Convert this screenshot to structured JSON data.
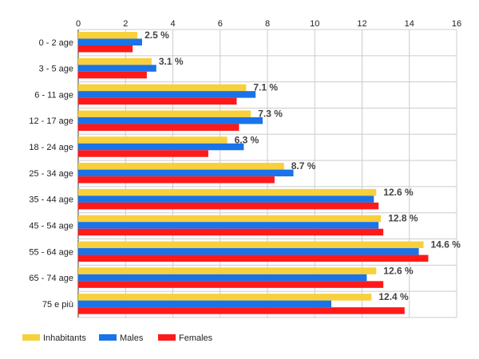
{
  "chart_data": {
    "type": "bar",
    "orientation": "horizontal",
    "categories": [
      "0 - 2 age",
      "3 - 5 age",
      "6 - 11 age",
      "12 - 17 age",
      "18 - 24 age",
      "25 - 34 age",
      "35 - 44 age",
      "45 - 54 age",
      "55 - 64 age",
      "65 - 74 age",
      "75 e più"
    ],
    "series": [
      {
        "name": "Inhabitants",
        "color": "#f7d03c",
        "values": [
          2.5,
          3.1,
          7.1,
          7.3,
          6.3,
          8.7,
          12.6,
          12.8,
          14.6,
          12.6,
          12.4
        ]
      },
      {
        "name": "Males",
        "color": "#1a73e8",
        "values": [
          2.7,
          3.3,
          7.5,
          7.8,
          7.0,
          9.1,
          12.5,
          12.7,
          14.4,
          12.2,
          10.7
        ]
      },
      {
        "name": "Females",
        "color": "#ff1a1a",
        "values": [
          2.3,
          2.9,
          6.7,
          6.8,
          5.5,
          8.3,
          12.7,
          12.9,
          14.8,
          12.9,
          13.8
        ]
      }
    ],
    "data_labels": [
      "2.5 %",
      "3.1 %",
      "7.1 %",
      "7.3 %",
      "6.3 %",
      "8.7 %",
      "12.6 %",
      "12.8 %",
      "14.6 %",
      "12.6 %",
      "12.4 %"
    ],
    "x_ticks": [
      "0",
      "2",
      "4",
      "6",
      "8",
      "10",
      "12",
      "14",
      "16"
    ],
    "xlim": [
      0,
      16
    ],
    "x_axis_position": "top",
    "grid": true,
    "legend_position": "bottom-left",
    "title": "",
    "xlabel": "",
    "ylabel": ""
  }
}
